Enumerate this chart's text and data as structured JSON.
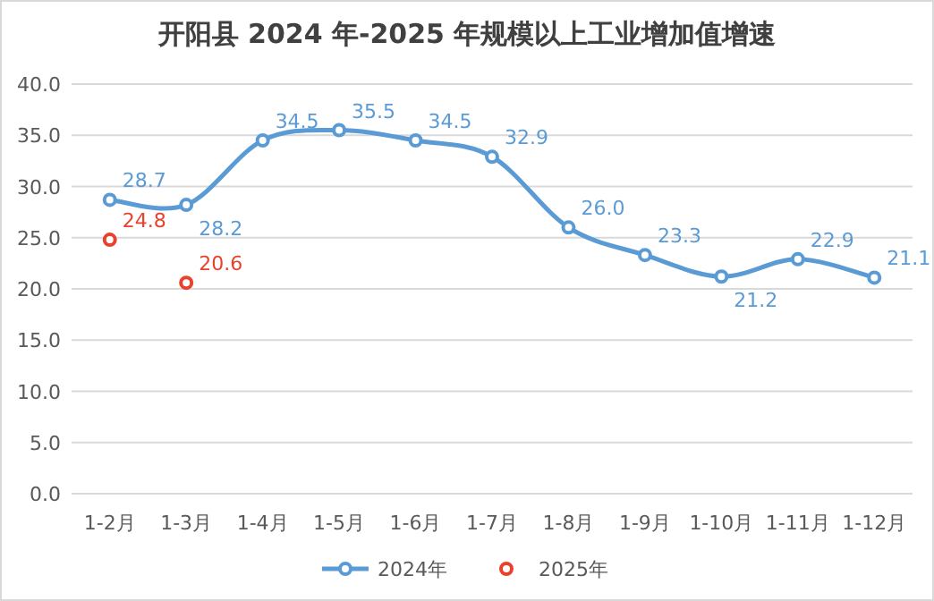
{
  "chart_data": {
    "type": "line",
    "title": "开阳县 2024 年-2025 年规模以上工业增加值增速",
    "categories": [
      "1-2月",
      "1-3月",
      "1-4月",
      "1-5月",
      "1-6月",
      "1-7月",
      "1-8月",
      "1-9月",
      "1-10月",
      "1-11月",
      "1-12月"
    ],
    "series": [
      {
        "name": "2024年",
        "color": "#5b9bd5",
        "values": [
          28.7,
          28.2,
          34.5,
          35.5,
          34.5,
          32.9,
          26.0,
          23.3,
          21.2,
          22.9,
          21.1
        ],
        "value_labels": [
          "28.7",
          "28.2",
          "34.5",
          "35.5",
          "34.5",
          "32.9",
          "26.0",
          "23.3",
          "21.2",
          "22.9",
          "21.1"
        ]
      },
      {
        "name": "2025年",
        "type": "scatter",
        "color": "#e8412c",
        "values": [
          24.8,
          20.6,
          null,
          null,
          null,
          null,
          null,
          null,
          null,
          null,
          null
        ],
        "value_labels": [
          "24.8",
          "20.6",
          null,
          null,
          null,
          null,
          null,
          null,
          null,
          null,
          null
        ]
      }
    ],
    "ylim": [
      0,
      40
    ],
    "yticks": [
      {
        "value": 0,
        "label": "0.0"
      },
      {
        "value": 5,
        "label": "5.0"
      },
      {
        "value": 10,
        "label": "10.0"
      },
      {
        "value": 15,
        "label": "15.0"
      },
      {
        "value": 20,
        "label": "20.0"
      },
      {
        "value": 25,
        "label": "25.0"
      },
      {
        "value": 30,
        "label": "30.0"
      },
      {
        "value": 35,
        "label": "35.0"
      },
      {
        "value": 40,
        "label": "40.0"
      }
    ],
    "grid": "y",
    "legend": "bottom",
    "marker": "circle"
  }
}
